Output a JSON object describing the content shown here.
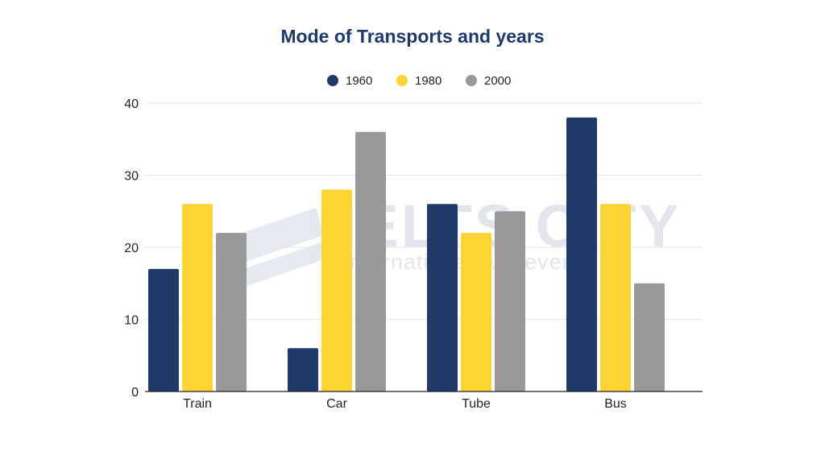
{
  "colors": {
    "title": "#1f3a68",
    "grid": "#e4e4e4",
    "axis": "#222222",
    "watermark": "#dfe3ea"
  },
  "watermark": {
    "line1": "IELTS CITY",
    "line2": "International & Clever"
  },
  "chart_data": {
    "type": "bar",
    "title": "Mode of Transports and years",
    "xlabel": "",
    "ylabel": "",
    "categories": [
      "Train",
      "Car",
      "Tube",
      "Bus"
    ],
    "series": [
      {
        "name": "1960",
        "color": "#1f3a68",
        "values": [
          17,
          6,
          26,
          38
        ]
      },
      {
        "name": "1980",
        "color": "#fed434",
        "values": [
          26,
          28,
          22,
          26
        ]
      },
      {
        "name": "2000",
        "color": "#999999",
        "values": [
          22,
          36,
          25,
          15
        ]
      }
    ],
    "ylim": [
      0,
      40
    ],
    "yticks": [
      0,
      10,
      20,
      30,
      40
    ],
    "grid": true,
    "legend": "top-center"
  }
}
